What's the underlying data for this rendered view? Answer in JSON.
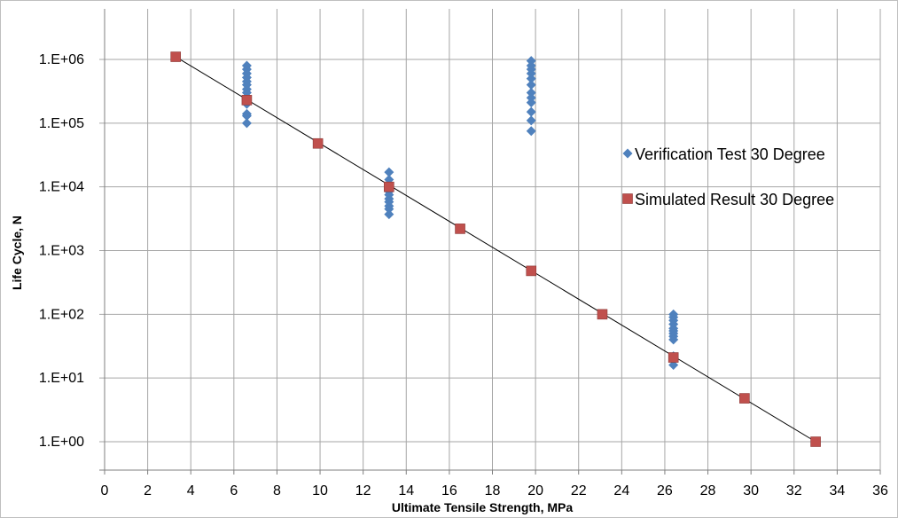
{
  "chart_data": {
    "type": "scatter",
    "xlabel": "Ultimate Tensile Strength, MPa",
    "ylabel": "Life Cycle, N",
    "xlim": [
      0,
      36
    ],
    "ylim": [
      1,
      1000000
    ],
    "yscale": "log",
    "x_ticks": [
      0,
      2,
      4,
      6,
      8,
      10,
      12,
      14,
      16,
      18,
      20,
      22,
      24,
      26,
      28,
      30,
      32,
      34,
      36
    ],
    "y_ticks": [
      {
        "value": 1,
        "label": "1.E+00"
      },
      {
        "value": 10,
        "label": "1.E+01"
      },
      {
        "value": 100,
        "label": "1.E+02"
      },
      {
        "value": 1000,
        "label": "1.E+03"
      },
      {
        "value": 10000,
        "label": "1.E+04"
      },
      {
        "value": 100000,
        "label": "1.E+05"
      },
      {
        "value": 1000000,
        "label": "1.E+06"
      }
    ],
    "grid": true,
    "legend_position": "right",
    "series": [
      {
        "name": "Verification Test 30 Degree",
        "marker": "diamond",
        "color": "#4F81BD",
        "points": [
          [
            6.6,
            800000
          ],
          [
            6.6,
            700000
          ],
          [
            6.6,
            600000
          ],
          [
            6.6,
            520000
          ],
          [
            6.6,
            450000
          ],
          [
            6.6,
            400000
          ],
          [
            6.6,
            340000
          ],
          [
            6.6,
            300000
          ],
          [
            6.6,
            260000
          ],
          [
            6.6,
            220000
          ],
          [
            6.6,
            200000
          ],
          [
            6.6,
            140000
          ],
          [
            6.6,
            130000
          ],
          [
            6.6,
            100000
          ],
          [
            13.2,
            17000
          ],
          [
            13.2,
            13000
          ],
          [
            13.2,
            11000
          ],
          [
            13.2,
            9500
          ],
          [
            13.2,
            8500
          ],
          [
            13.2,
            7500
          ],
          [
            13.2,
            6500
          ],
          [
            13.2,
            5800
          ],
          [
            13.2,
            5000
          ],
          [
            13.2,
            4500
          ],
          [
            13.2,
            3700
          ],
          [
            19.8,
            950000
          ],
          [
            19.8,
            800000
          ],
          [
            19.8,
            700000
          ],
          [
            19.8,
            600000
          ],
          [
            19.8,
            500000
          ],
          [
            19.8,
            400000
          ],
          [
            19.8,
            300000
          ],
          [
            19.8,
            250000
          ],
          [
            19.8,
            210000
          ],
          [
            19.8,
            150000
          ],
          [
            19.8,
            110000
          ],
          [
            19.8,
            75000
          ],
          [
            26.4,
            100
          ],
          [
            26.4,
            90
          ],
          [
            26.4,
            80
          ],
          [
            26.4,
            70
          ],
          [
            26.4,
            60
          ],
          [
            26.4,
            55
          ],
          [
            26.4,
            50
          ],
          [
            26.4,
            45
          ],
          [
            26.4,
            40
          ],
          [
            26.4,
            22
          ],
          [
            26.4,
            16
          ]
        ]
      },
      {
        "name": "Simulated Result 30 Degree",
        "marker": "square",
        "color": "#C0504D",
        "points": [
          [
            3.3,
            1100000
          ],
          [
            6.6,
            230000
          ],
          [
            9.9,
            48000
          ],
          [
            13.2,
            10000
          ],
          [
            16.5,
            2200
          ],
          [
            19.8,
            480
          ],
          [
            23.1,
            100
          ],
          [
            26.4,
            21
          ],
          [
            29.7,
            4.8
          ],
          [
            33.0,
            1.0
          ]
        ]
      }
    ],
    "trendline": {
      "from": [
        3.3,
        1100000
      ],
      "to": [
        33.0,
        1.0
      ],
      "color": "#000000"
    }
  }
}
